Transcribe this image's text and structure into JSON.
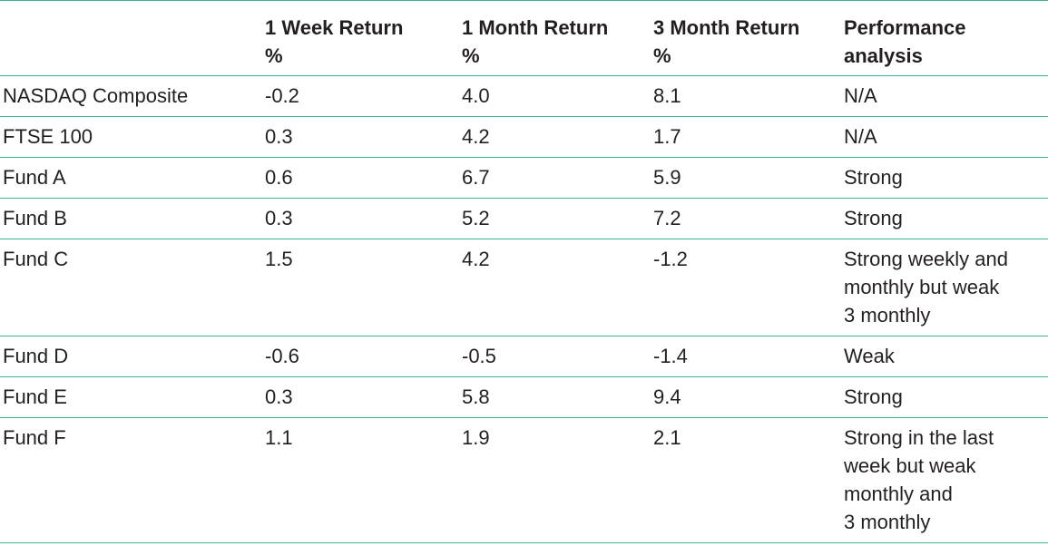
{
  "table": {
    "headers": [
      "",
      "1 Week Return %",
      "1 Month Return %",
      "3 Month Return %",
      "Performance analysis"
    ],
    "rows": [
      [
        "NASDAQ Composite",
        "-0.2",
        "4.0",
        "8.1",
        "N/A"
      ],
      [
        "FTSE 100",
        "0.3",
        "4.2",
        "1.7",
        "N/A"
      ],
      [
        "Fund A",
        "0.6",
        "6.7",
        "5.9",
        "Strong"
      ],
      [
        "Fund B",
        "0.3",
        "5.2",
        "7.2",
        "Strong"
      ],
      [
        "Fund C",
        "1.5",
        "4.2",
        "-1.2",
        "Strong weekly and monthly but weak 3 monthly"
      ],
      [
        "Fund D",
        "-0.6",
        "-0.5",
        "-1.4",
        "Weak"
      ],
      [
        "Fund E",
        "0.3",
        "5.8",
        "9.4",
        "Strong"
      ],
      [
        "Fund F",
        "1.1",
        "1.9",
        "2.1",
        "Strong in the last week but weak monthly and 3 monthly"
      ]
    ]
  },
  "colors": {
    "rule": "#3fb58e",
    "text": "#231f20"
  }
}
